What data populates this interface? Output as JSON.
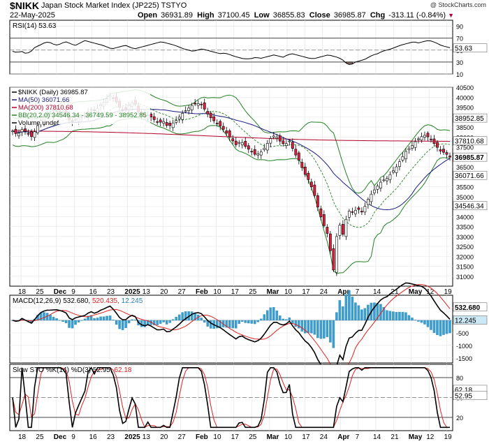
{
  "header": {
    "ticker": "$NIKK",
    "name": "Japan Stock Market Index (JP225)",
    "exchange": "TSTYO",
    "date": "22-May-2025",
    "credit": "@ StockCharts.com",
    "open_label": "Open",
    "open": "36931.89",
    "high_label": "High",
    "high": "37100.45",
    "low_label": "Low",
    "low": "36855.83",
    "close_label": "Close",
    "close": "36985.87",
    "chg_label": "Chg",
    "chg": "-313.11 (-0.84%)"
  },
  "colors": {
    "up_candle": "#ffffff",
    "down_candle": "#e31e3c",
    "candle_outline": "#000000",
    "ma50": "#1a1a80",
    "ma200": "#b00028",
    "bollinger": "#208020",
    "bb_mid": "#208020",
    "macd_line": "#000000",
    "signal_line": "#e02020",
    "histogram": "#3a9fd0",
    "rsi_line": "#000000",
    "rsi_fill": "#8a6a6a",
    "stoch_k": "#000000",
    "stoch_d": "#e02020"
  },
  "chart_data": [
    {
      "type": "line",
      "panel": "RSI",
      "legend": "RSI(14) 53.63",
      "ylim": [
        10,
        100
      ],
      "yticks": [
        10,
        30,
        50,
        70,
        90
      ],
      "overbought": 70,
      "oversold": 30,
      "last_value": "53.63",
      "values": [
        48,
        46,
        48,
        44,
        47,
        55,
        58,
        62,
        64,
        60,
        58,
        62,
        64,
        60,
        58,
        62,
        66,
        64,
        62,
        60,
        58,
        55,
        52,
        54,
        56,
        58,
        55,
        52,
        54,
        56,
        58,
        60,
        62,
        64,
        62,
        60,
        58,
        55,
        52,
        50,
        48,
        50,
        52,
        50,
        48,
        46,
        44,
        45,
        43,
        40,
        38,
        36,
        35,
        36,
        38,
        36,
        38,
        40,
        42,
        40,
        38,
        42,
        44,
        42,
        40,
        38,
        36,
        36,
        38,
        40,
        42,
        40,
        38,
        35,
        28,
        25,
        30,
        32,
        34,
        38,
        42,
        44,
        48,
        50,
        52,
        55,
        58,
        60,
        62,
        64,
        62,
        64,
        66,
        65,
        62,
        58,
        56,
        54
      ]
    },
    {
      "type": "candlestick",
      "panel": "Price",
      "legend": "$NIKK (Daily) 36985.87",
      "ylim": [
        30500,
        40500
      ],
      "yticks": [
        31000,
        31500,
        32000,
        32500,
        33000,
        33500,
        34000,
        34500,
        35000,
        35500,
        36000,
        36500,
        37000,
        37500,
        38000,
        38500,
        39000,
        39500,
        40000,
        40500
      ],
      "xticks": [
        "18",
        "25",
        "Dec",
        "9",
        "16",
        "23",
        "2025",
        "13",
        "20",
        "27",
        "Feb",
        "10",
        "17",
        "25",
        "Mar",
        "10",
        "17",
        "24",
        "Apr",
        "7",
        "14",
        "21",
        "May",
        "12",
        "19"
      ],
      "closes": [
        38300,
        38100,
        38400,
        38200,
        38000,
        38500,
        38900,
        39100,
        39200,
        39300,
        39300,
        39200,
        38700,
        38900,
        39000,
        39100,
        39400,
        39300,
        39600,
        39800,
        40100,
        39900,
        39500,
        39300,
        39600,
        39800,
        39200,
        39000,
        39100,
        38900,
        38700,
        38800,
        38500,
        38700,
        38900,
        39200,
        39400,
        39600,
        39700,
        39600,
        39200,
        38900,
        38700,
        38500,
        38200,
        37900,
        37600,
        37800,
        37500,
        37300,
        37100,
        37200,
        37500,
        37900,
        38100,
        37800,
        37600,
        37800,
        37200,
        36800,
        36200,
        35800,
        35200,
        34300,
        33600,
        33000,
        31200,
        33800,
        33100,
        34300,
        34200,
        34400,
        34200,
        34800,
        35200,
        35500,
        35800,
        35900,
        36200,
        36500,
        36900,
        37300,
        37500,
        37800,
        38000,
        38100,
        37900,
        37600,
        37300,
        37200,
        36986
      ],
      "ma50": {
        "name": "MA(50) 36071.66",
        "last": "36071.66"
      },
      "ma200": {
        "name": "MA(200) 37810.68",
        "last": "37810.68"
      },
      "bb": {
        "name": "BB(20,2.0) 34546.34 - 36749.59 - 38952.85",
        "upper": "38952.85",
        "mid": "36749.59",
        "lower": "34546.34"
      },
      "volume_label": "Volume undef",
      "last_close": "36985.87"
    },
    {
      "type": "bar",
      "panel": "MACD",
      "legend_name": "MACD(12,26,9)",
      "legend_macd": "532.680",
      "legend_signal": "520.435",
      "legend_hist": "12.245",
      "ylim": [
        -1700,
        1000
      ],
      "yticks": [
        -1500,
        -1000,
        -500,
        0,
        500
      ],
      "macd_last": "532.680",
      "hist_last": "12.245"
    },
    {
      "type": "line",
      "panel": "Slow Stochastic",
      "legend_name": "Slow STO %K(14) %D(3)",
      "legend_k": "52.95",
      "legend_d": "62.18",
      "ylim": [
        0,
        100
      ],
      "yticks": [
        20,
        50,
        80
      ],
      "k_last": "52.95",
      "d_last": "62.18",
      "xticks": [
        "18",
        "25",
        "Dec",
        "9",
        "16",
        "23",
        "2025",
        "13",
        "20",
        "27",
        "Feb",
        "10",
        "17",
        "25",
        "Mar",
        "10",
        "17",
        "24",
        "Apr",
        "7",
        "14",
        "21",
        "May",
        "12",
        "19"
      ]
    }
  ]
}
